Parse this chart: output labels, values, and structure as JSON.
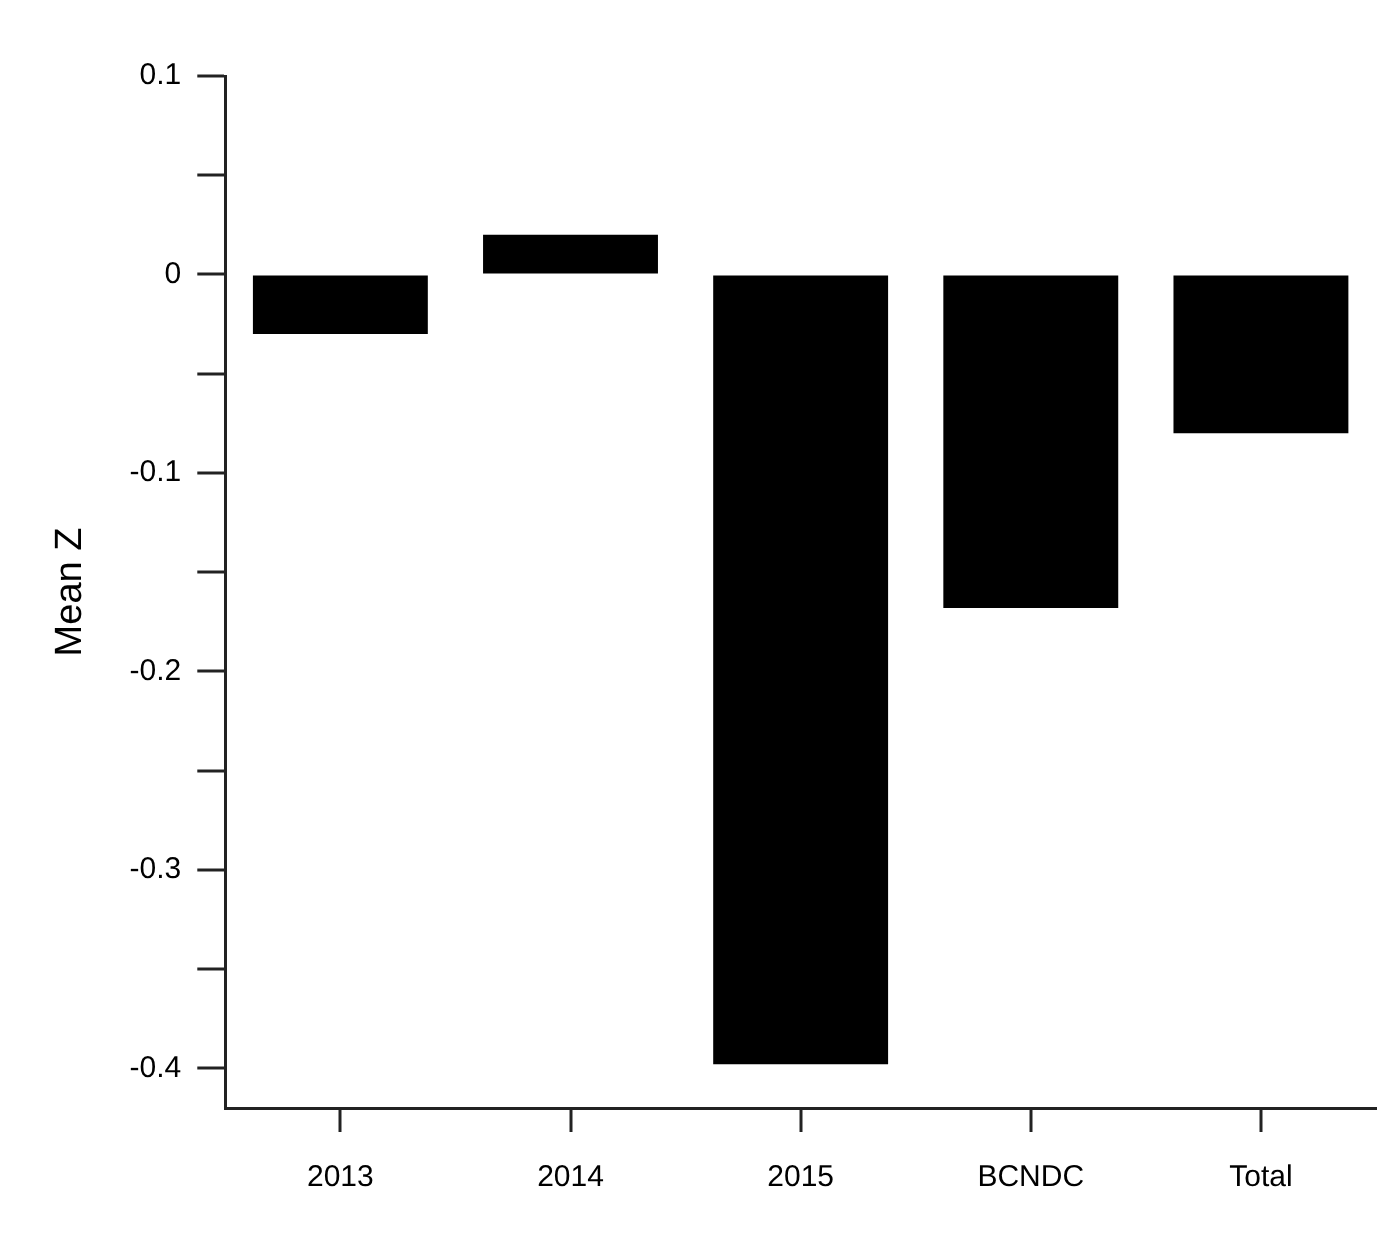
{
  "chart_data": {
    "type": "bar",
    "ylabel": "Mean Z",
    "categories": [
      "2013",
      "2014",
      "2015",
      "BCNDC",
      "Total"
    ],
    "values": [
      -0.03,
      0.02,
      -0.398,
      -0.168,
      -0.08
    ],
    "color": "#000000",
    "ylim": [
      -0.42,
      0.1
    ],
    "yticks": [
      0.1,
      {
        "value": 0.05,
        "label": null
      },
      0,
      {
        "value": -0.05,
        "label": null
      },
      -0.1,
      {
        "value": -0.15,
        "label": null
      },
      -0.2,
      {
        "value": -0.25,
        "label": null
      },
      -0.3,
      {
        "value": -0.35,
        "label": null
      },
      -0.4
    ],
    "grid": false,
    "legend": false
  }
}
